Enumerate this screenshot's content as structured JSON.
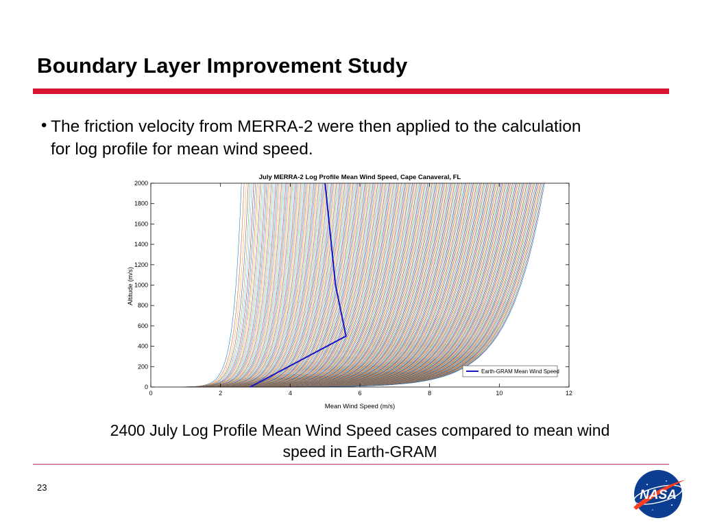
{
  "slide": {
    "title": "Boundary Layer Improvement Study",
    "bullet": "The friction velocity from MERRA-2 were then applied to the calculation for log profile for mean wind speed.",
    "caption": "2400 July Log Profile Mean Wind Speed cases compared to mean wind speed in Earth-GRAM",
    "page_number": "23",
    "accent_color": "#d7152e",
    "logo_text": "NASA"
  },
  "chart_data": {
    "type": "line",
    "title": "July MERRA-2 Log Profile Mean Wind Speed, Cape Canaveral, FL",
    "xlabel": "Mean Wind Speed (m/s)",
    "ylabel": "Altitude (m/s)",
    "xlim": [
      0,
      12
    ],
    "ylim": [
      0,
      2000
    ],
    "xticks": [
      0,
      2,
      4,
      6,
      8,
      10,
      12
    ],
    "yticks": [
      0,
      200,
      400,
      600,
      800,
      1000,
      1200,
      1400,
      1600,
      1800,
      2000
    ],
    "grid": false,
    "legend_position": "bottom-right",
    "log_profile_cases": {
      "count": 2400,
      "wind_speed_at_2000m_range": [
        2.6,
        11.3
      ],
      "shape": "logarithmic"
    },
    "series": [
      {
        "name": "Earth-GRAM Mean Wind Speed",
        "color": "#1515c8",
        "x": [
          2.85,
          5.6,
          5.3,
          5.15,
          5.0
        ],
        "y": [
          0,
          500,
          1000,
          1500,
          2000
        ]
      }
    ]
  }
}
